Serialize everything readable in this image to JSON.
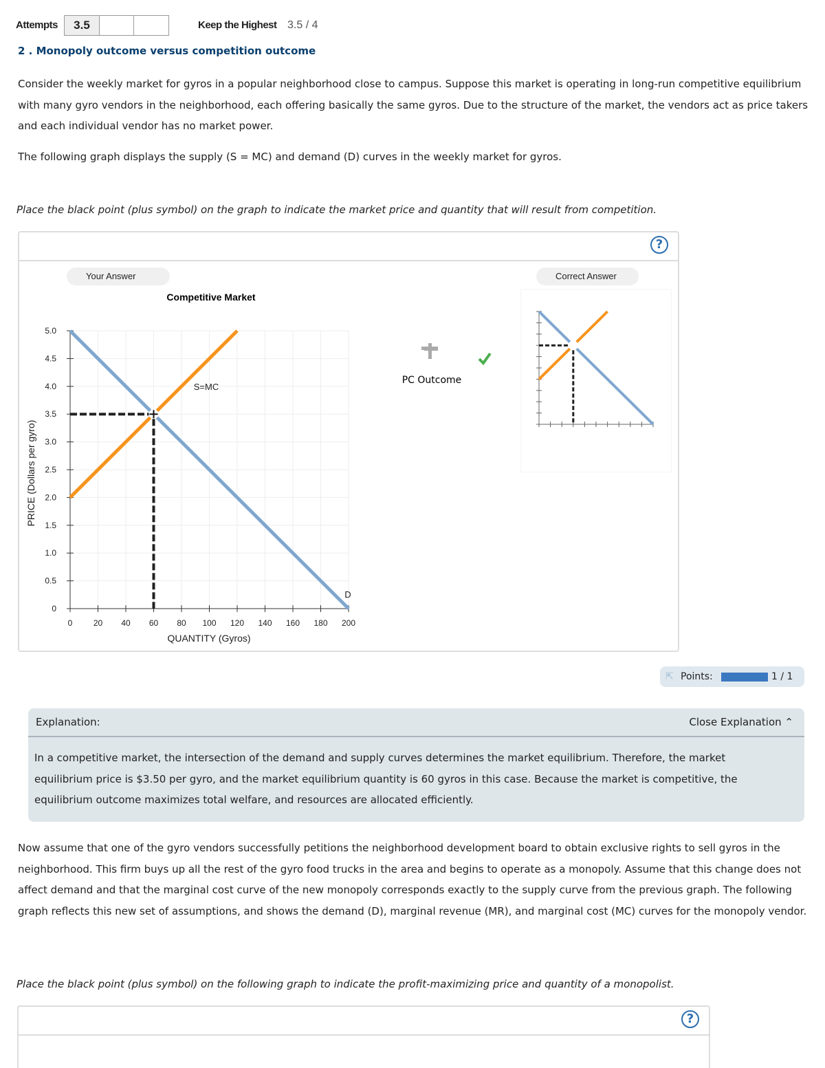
{
  "header": {
    "attempts_label": "Attempts",
    "attempts": [
      "3.5",
      "",
      ""
    ],
    "keep_label": "Keep the Highest",
    "score": "3.5 / 4"
  },
  "question": {
    "title": "2 . Monopoly outcome versus competition outcome",
    "para1": "Consider the weekly market for gyros in a popular neighborhood close to campus. Suppose this market is operating in long-run competitive equilibrium with many gyro vendors in the neighborhood, each offering basically the same gyros. Due to the structure of the market, the vendors act as price takers and each individual vendor has no market power.",
    "para2": "The following graph displays the supply (S = MC) and demand (D) curves in the weekly market for gyros.",
    "instruction1": "Place the black point (plus symbol) on the graph to indicate the market price and quantity that will result from competition.",
    "para3": "Now assume that one of the gyro vendors successfully petitions the neighborhood development board to obtain exclusive rights to sell gyros in the neighborhood. This firm buys up all the rest of the gyro food trucks in the area and begins to operate as a monopoly. Assume that this change does not affect demand and that the marginal cost curve of the new monopoly corresponds exactly to the supply curve from the previous graph. The following graph reflects this new set of assumptions, and shows the demand (D), marginal revenue (MR), and marginal cost (MC) curves for the monopoly vendor.",
    "instruction2": "Place the black point (plus symbol) on the following graph to indicate the profit-maximizing price and quantity of a monopolist."
  },
  "graph": {
    "help": "?",
    "your_answer": "Your Answer",
    "correct_answer": "Correct Answer",
    "palette_label": "PC Outcome"
  },
  "chart_data": {
    "type": "line",
    "title": "Competitive Market",
    "xlabel": "QUANTITY (Gyros)",
    "ylabel": "PRICE (Dollars per gyro)",
    "xlim": [
      0,
      200
    ],
    "ylim": [
      0,
      5
    ],
    "xticks": [
      "0",
      "20",
      "40",
      "60",
      "80",
      "100",
      "120",
      "140",
      "160",
      "180",
      "200"
    ],
    "yticks": [
      "0",
      "0.5",
      "1.0",
      "1.5",
      "2.0",
      "2.5",
      "3.0",
      "3.5",
      "4.0",
      "4.5",
      "5.0"
    ],
    "series": [
      {
        "name": "D",
        "color": "#7ea7d0",
        "points": [
          [
            0,
            5
          ],
          [
            200,
            0
          ]
        ]
      },
      {
        "name": "S=MC",
        "color": "#f7941d",
        "points": [
          [
            0,
            2
          ],
          [
            120,
            5
          ]
        ]
      }
    ],
    "point": {
      "name": "PC Outcome",
      "x": 60,
      "y": 3.5
    }
  },
  "score": {
    "label": "Points:",
    "value": "1 / 1",
    "fraction": 1
  },
  "explanation": {
    "label": "Explanation:",
    "close": "Close Explanation",
    "text": "In a competitive market, the intersection of the demand and supply curves determines the market equilibrium. Therefore, the market equilibrium price is $3.50 per gyro, and the market equilibrium quantity is 60 gyros in this case. Because the market is competitive, the equilibrium outcome maximizes total welfare, and resources are allocated efficiently."
  },
  "graph2": {
    "help": "?"
  }
}
